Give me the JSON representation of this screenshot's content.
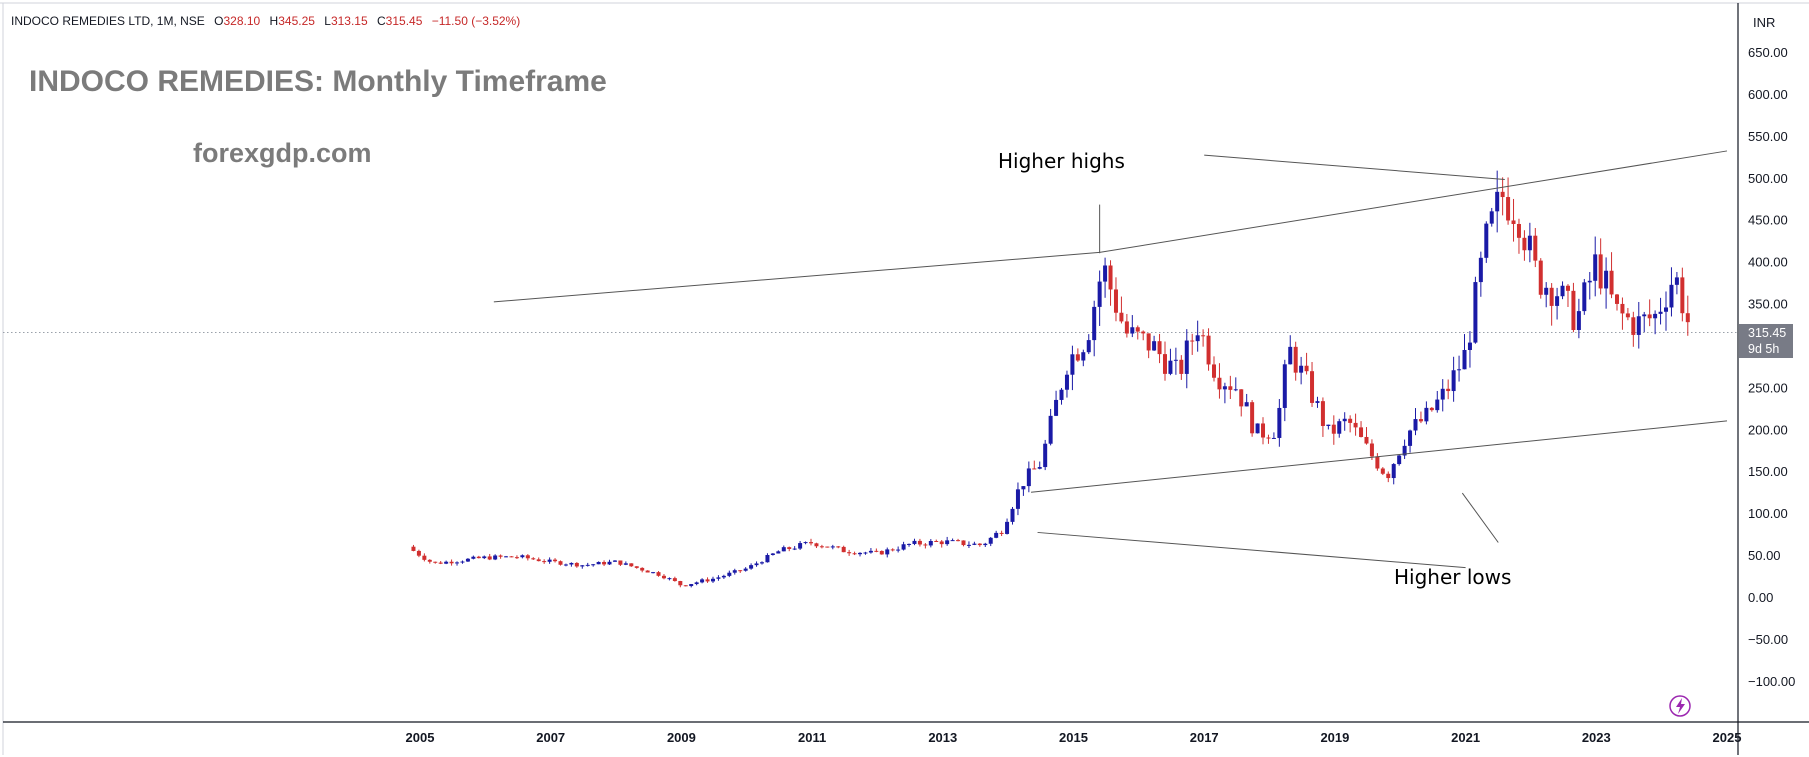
{
  "header": {
    "symbol_line": "INDOCO REMEDIES LTD, 1M, NSE",
    "open_label": "O",
    "open_value": "328.10",
    "high_label": "H",
    "high_value": "345.25",
    "low_label": "L",
    "low_value": "313.15",
    "close_label": "C",
    "close_value": "315.45",
    "change_value": "−11.50 (−3.52%)"
  },
  "overlay": {
    "title": "INDOCO REMEDIES: Monthly Timeframe",
    "site": "forexgdp.com"
  },
  "price_scale": {
    "currency": "INR",
    "labels": [
      "650.00",
      "600.00",
      "550.00",
      "500.00",
      "450.00",
      "400.00",
      "350.00",
      "250.00",
      "200.00",
      "150.00",
      "100.00",
      "50.00",
      "0.00",
      "−50.00",
      "−100.00"
    ],
    "current_price_label": "315.45",
    "countdown_label": "9d 5h"
  },
  "colors": {
    "up": "#1a1aa6",
    "down": "#d12f2f",
    "trendline": "#555555",
    "price_tag": "#787b86",
    "flash_icon": "#9c27b0"
  },
  "chart_data": {
    "type": "candlestick",
    "title": "INDOCO REMEDIES: Monthly Timeframe",
    "symbol": "INDOCO REMEDIES LTD, 1M, NSE",
    "currency": "INR",
    "ylim": [
      -130,
      690
    ],
    "xlim": [
      2000.1,
      2025.2
    ],
    "x_ticks": [
      "2005",
      "2007",
      "2009",
      "2011",
      "2013",
      "2015",
      "2017",
      "2019",
      "2021",
      "2023",
      "2025"
    ],
    "y_ticks": [
      650,
      600,
      550,
      500,
      450,
      400,
      350,
      250,
      200,
      150,
      100,
      50,
      0,
      -50,
      -100
    ],
    "last_price": 315.45,
    "close_anchors": [
      [
        2004.9,
        55
      ],
      [
        2005.2,
        40
      ],
      [
        2006.0,
        47
      ],
      [
        2006.5,
        48
      ],
      [
        2007.0,
        42
      ],
      [
        2007.5,
        38
      ],
      [
        2008.0,
        42
      ],
      [
        2008.7,
        26
      ],
      [
        2009.0,
        14
      ],
      [
        2009.5,
        22
      ],
      [
        2010.0,
        34
      ],
      [
        2010.5,
        55
      ],
      [
        2011.0,
        65
      ],
      [
        2011.5,
        55
      ],
      [
        2012.0,
        52
      ],
      [
        2012.5,
        63
      ],
      [
        2013.0,
        66
      ],
      [
        2013.6,
        62
      ],
      [
        2013.9,
        80
      ],
      [
        2014.2,
        135
      ],
      [
        2014.5,
        160
      ],
      [
        2014.9,
        280
      ],
      [
        2015.2,
        310
      ],
      [
        2015.45,
        395
      ],
      [
        2015.8,
        315
      ],
      [
        2016.2,
        300
      ],
      [
        2016.6,
        265
      ],
      [
        2016.9,
        325
      ],
      [
        2017.2,
        265
      ],
      [
        2017.5,
        250
      ],
      [
        2017.8,
        195
      ],
      [
        2018.1,
        200
      ],
      [
        2018.3,
        295
      ],
      [
        2018.6,
        250
      ],
      [
        2018.9,
        195
      ],
      [
        2019.2,
        210
      ],
      [
        2019.5,
        175
      ],
      [
        2019.8,
        145
      ],
      [
        2020.1,
        195
      ],
      [
        2020.4,
        215
      ],
      [
        2020.7,
        245
      ],
      [
        2021.0,
        290
      ],
      [
        2021.3,
        420
      ],
      [
        2021.55,
        480
      ],
      [
        2021.8,
        460
      ],
      [
        2022.1,
        380
      ],
      [
        2022.4,
        365
      ],
      [
        2022.7,
        330
      ],
      [
        2023.0,
        400
      ],
      [
        2023.3,
        340
      ],
      [
        2023.6,
        325
      ],
      [
        2023.9,
        335
      ],
      [
        2024.2,
        385
      ],
      [
        2024.45,
        315
      ]
    ],
    "trendlines": [
      {
        "start": [
          2006.13,
          352
        ],
        "end": [
          2015.4,
          411
        ]
      },
      {
        "start": [
          2015.4,
          411
        ],
        "end": [
          2025.0,
          532
        ]
      },
      {
        "start": [
          2014.35,
          125
        ],
        "end": [
          2025.0,
          210
        ]
      }
    ],
    "annotations": [
      {
        "text": "Higher highs",
        "leaders": [
          [
            2015.4,
            468,
            2015.4,
            410
          ],
          [
            2017.0,
            527,
            2021.6,
            498
          ]
        ]
      },
      {
        "text": "Higher lows",
        "leaders": [
          [
            2021.0,
            35,
            2014.45,
            77
          ],
          [
            2021.5,
            65,
            2020.95,
            124
          ]
        ]
      }
    ]
  }
}
